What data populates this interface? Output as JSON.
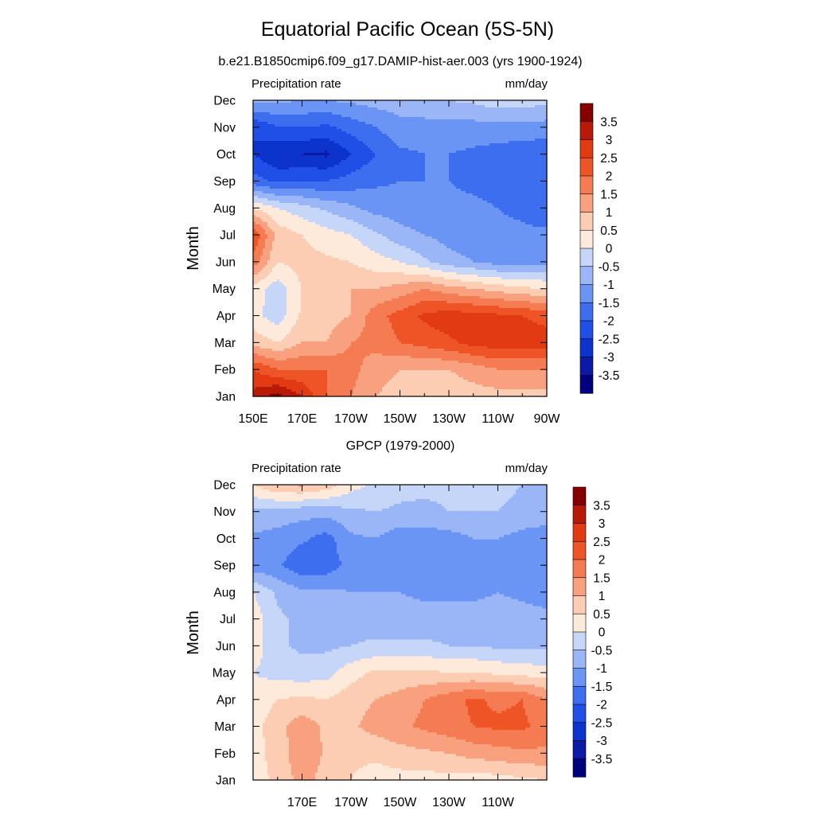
{
  "figure": {
    "title": "Equatorial Pacific Ocean (5S-5N)"
  },
  "chart_data": [
    {
      "type": "heatmap",
      "title": "b.e21.B1850cmip6.f09_g17.DAMIP-hist-aer.003 (yrs 1900-1924)",
      "left_label": "Precipitation rate",
      "right_label": "mm/day",
      "ylabel": "Month",
      "x_ticks": [
        "150E",
        "170E",
        "170W",
        "150W",
        "130W",
        "110W",
        "90W"
      ],
      "y_ticks": [
        "Jan",
        "Feb",
        "Mar",
        "Apr",
        "May",
        "Jun",
        "Jul",
        "Aug",
        "Sep",
        "Oct",
        "Nov",
        "Dec"
      ],
      "xlim": [
        "150E",
        "90W"
      ],
      "units": "mm/day",
      "levels": [
        -3.5,
        -3,
        -2.5,
        -2,
        -1.5,
        -1,
        -0.5,
        0,
        0.5,
        1,
        1.5,
        2,
        2.5,
        3,
        3.5
      ],
      "colorbar_labels": [
        "3.5",
        "3",
        "2.5",
        "2",
        "1.5",
        "1",
        "0.5",
        "0",
        "-0.5",
        "-1",
        "-1.5",
        "-2",
        "-2.5",
        "-3",
        "-3.5"
      ],
      "lon_grid": [
        150,
        160,
        170,
        180,
        190,
        200,
        210,
        220,
        230,
        240,
        250,
        260,
        270
      ],
      "values_by_month": [
        [
          3.2,
          3.7,
          3.0,
          2.0,
          1.5,
          1.0,
          0.8,
          0.6,
          0.7,
          0.8,
          0.8,
          0.8,
          0.8
        ],
        [
          2.5,
          2.0,
          2.0,
          2.0,
          1.7,
          1.2,
          1.0,
          1.0,
          1.0,
          1.2,
          1.5,
          1.5,
          1.5
        ],
        [
          0.8,
          0.5,
          1.0,
          1.0,
          1.5,
          1.7,
          2.0,
          2.2,
          2.4,
          2.7,
          2.8,
          2.8,
          2.8
        ],
        [
          0.2,
          -0.3,
          0.6,
          0.8,
          1.0,
          1.8,
          2.2,
          2.6,
          2.8,
          2.7,
          2.6,
          2.5,
          2.3
        ],
        [
          0.3,
          -0.3,
          0.5,
          0.5,
          1.0,
          1.0,
          1.2,
          1.5,
          1.2,
          1.0,
          0.8,
          0.6,
          0.5
        ],
        [
          1.8,
          0.5,
          0.7,
          0.6,
          0.5,
          0.2,
          0.0,
          -0.4,
          -0.8,
          -1.0,
          -1.2,
          -1.2,
          -1.2
        ],
        [
          2.5,
          0.8,
          0.5,
          0.2,
          0.0,
          -0.4,
          -0.8,
          -1.0,
          -1.2,
          -1.3,
          -1.4,
          -1.4,
          -1.4
        ],
        [
          0.5,
          0.0,
          -0.3,
          -0.6,
          -0.9,
          -1.2,
          -1.3,
          -1.4,
          -1.4,
          -1.4,
          -1.5,
          -1.6,
          -1.8
        ],
        [
          -1.8,
          -2.1,
          -2.0,
          -2.0,
          -1.8,
          -1.6,
          -1.5,
          -1.5,
          -1.5,
          -1.6,
          -1.7,
          -1.8,
          -2.0
        ],
        [
          -2.5,
          -3.0,
          -3.0,
          -3.1,
          -2.5,
          -2.0,
          -1.6,
          -1.5,
          -1.5,
          -1.6,
          -1.7,
          -1.8,
          -1.9
        ],
        [
          -2.5,
          -2.0,
          -2.0,
          -2.1,
          -1.8,
          -1.5,
          -1.2,
          -1.2,
          -1.2,
          -1.2,
          -1.2,
          -1.2,
          -1.2
        ],
        [
          -0.8,
          -0.9,
          -1.0,
          -1.0,
          -0.9,
          -0.8,
          -0.7,
          -0.6,
          -0.5,
          -0.4,
          -0.2,
          -0.2,
          -0.4
        ]
      ]
    },
    {
      "type": "heatmap",
      "title": "GPCP (1979-2000)",
      "left_label": "Precipitation rate",
      "right_label": "mm/day",
      "ylabel": "Month",
      "x_ticks": [
        "170E",
        "170W",
        "150W",
        "130W",
        "110W"
      ],
      "y_ticks": [
        "Jan",
        "Feb",
        "Mar",
        "Apr",
        "May",
        "Jun",
        "Jul",
        "Aug",
        "Sep",
        "Oct",
        "Nov",
        "Dec"
      ],
      "units": "mm/day",
      "levels": [
        -3.5,
        -3,
        -2.5,
        -2,
        -1.5,
        -1,
        -0.5,
        0,
        0.5,
        1,
        1.5,
        2,
        2.5,
        3,
        3.5
      ],
      "colorbar_labels": [
        "3.5",
        "3",
        "2.5",
        "2",
        "1.5",
        "1",
        "0.5",
        "0",
        "-0.5",
        "-1",
        "-1.5",
        "-2",
        "-2.5",
        "-3",
        "-3.5"
      ],
      "lon_grid": [
        150,
        160,
        170,
        180,
        190,
        200,
        210,
        220,
        230,
        240,
        250,
        260,
        270
      ],
      "values_by_month": [
        [
          0.3,
          0.6,
          1.2,
          0.8,
          0.5,
          0.3,
          0.3,
          0.3,
          0.3,
          0.2,
          0.3,
          0.4,
          0.5
        ],
        [
          0.3,
          0.7,
          1.4,
          0.9,
          0.6,
          0.6,
          0.8,
          0.9,
          1.0,
          1.2,
          1.3,
          1.4,
          1.4
        ],
        [
          0.3,
          0.8,
          1.3,
          0.9,
          0.9,
          1.2,
          1.4,
          1.6,
          1.8,
          2.0,
          2.1,
          2.1,
          1.8
        ],
        [
          0.2,
          0.5,
          0.6,
          0.5,
          0.8,
          1.0,
          1.2,
          1.5,
          1.8,
          2.1,
          1.9,
          2.0,
          1.5
        ],
        [
          0.0,
          -0.2,
          -0.3,
          -0.2,
          0.3,
          0.6,
          0.6,
          0.6,
          0.5,
          0.5,
          0.4,
          0.3,
          0.2
        ],
        [
          0.3,
          -0.4,
          -0.6,
          -0.6,
          -0.5,
          -0.4,
          -0.4,
          -0.4,
          -0.5,
          -0.5,
          -0.6,
          -0.6,
          -0.6
        ],
        [
          0.3,
          -0.4,
          -0.6,
          -0.6,
          -0.7,
          -0.8,
          -0.8,
          -0.8,
          -0.8,
          -0.8,
          -0.8,
          -0.8,
          -0.8
        ],
        [
          0.0,
          -0.6,
          -0.9,
          -0.9,
          -1.0,
          -1.0,
          -1.0,
          -1.1,
          -1.1,
          -1.1,
          -1.0,
          -1.1,
          -1.3
        ],
        [
          -1.3,
          -1.4,
          -1.9,
          -1.8,
          -1.3,
          -1.1,
          -1.3,
          -1.5,
          -1.5,
          -1.4,
          -1.1,
          -1.2,
          -1.4
        ],
        [
          -1.1,
          -1.2,
          -1.4,
          -1.7,
          -1.1,
          -1.0,
          -1.3,
          -1.3,
          -1.2,
          -1.0,
          -1.0,
          -1.2,
          -1.3
        ],
        [
          -0.6,
          -0.7,
          -0.8,
          -0.8,
          -0.6,
          -0.5,
          -0.6,
          -0.6,
          -0.5,
          -0.5,
          -0.5,
          -0.6,
          -0.7
        ],
        [
          0.5,
          1.0,
          1.1,
          0.8,
          0.2,
          -0.1,
          -0.3,
          -0.4,
          -0.4,
          -0.4,
          -0.4,
          -0.5,
          -0.5
        ]
      ]
    }
  ]
}
